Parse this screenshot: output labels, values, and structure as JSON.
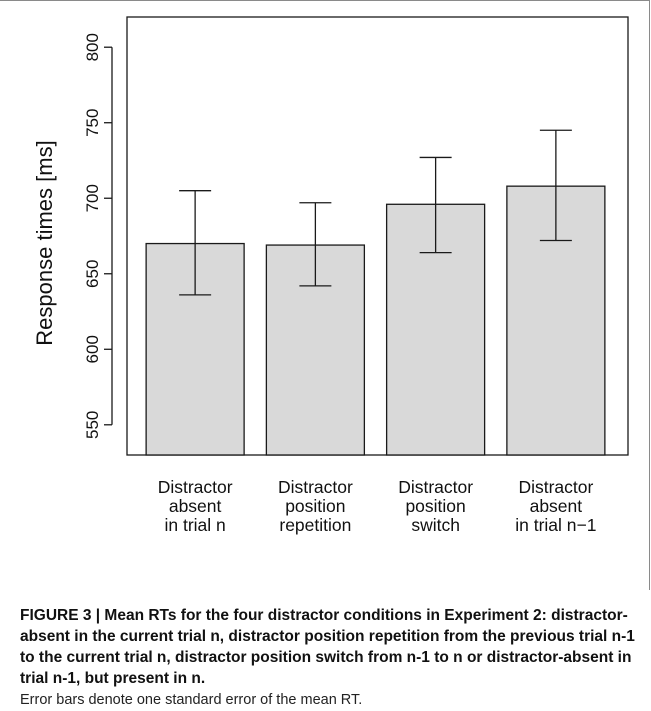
{
  "chart_data": {
    "type": "bar",
    "categories": [
      [
        "Distractor",
        "absent",
        "in trial n"
      ],
      [
        "Distractor",
        "position",
        "repetition"
      ],
      [
        "Distractor",
        "position",
        "switch"
      ],
      [
        "Distractor",
        "absent",
        "in trial n−1"
      ]
    ],
    "values": [
      670,
      669,
      696,
      708
    ],
    "errors": [
      {
        "lower": 636,
        "upper": 705
      },
      {
        "lower": 642,
        "upper": 697
      },
      {
        "lower": 664,
        "upper": 727
      },
      {
        "lower": 672,
        "upper": 745
      }
    ],
    "ylabel": "Response times [ms]",
    "xlabel": "",
    "ylim": [
      530,
      820
    ],
    "yticks": [
      550,
      600,
      650,
      700,
      750,
      800
    ],
    "grid": false,
    "bar_fill": "#d9d9d9",
    "bar_stroke": "#1a1a1a"
  },
  "caption": {
    "bold": "FIGURE 3 | Mean RTs for the four distractor conditions in Experiment 2: distractor-absent in the current trial n, distractor position repetition from the previous trial n-1 to the current trial n, distractor position switch from n-1 to n or distractor-absent in trial n-1, but present in n.",
    "normal": "Error bars denote one standard error of the mean RT."
  }
}
